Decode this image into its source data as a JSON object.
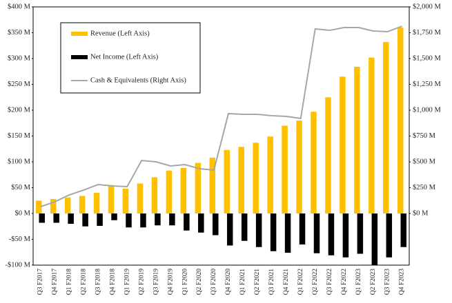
{
  "chart_data": {
    "type": "bar",
    "categories": [
      "Q3 F2017",
      "Q4 F2017",
      "Q1 F2018",
      "Q2 F2018",
      "Q3 F2018",
      "Q4 F2018",
      "Q1 F2019",
      "Q2 F2019",
      "Q3 F2019",
      "Q4 F2019",
      "Q1 F2020",
      "Q2 F2020",
      "Q3 F2020",
      "Q4 F2020",
      "Q1 F2021",
      "Q2 F2021",
      "Q3 F2021",
      "Q4 F2021",
      "Q1 F2022",
      "Q2 F2022",
      "Q3 F2022",
      "Q4 F2022",
      "Q1 F2023",
      "Q2 F2023",
      "Q3 F2023",
      "Q4 F2023"
    ],
    "series": [
      {
        "name": "Revenue (Left Axis)",
        "type": "bar",
        "color": "#ffc000",
        "values": [
          25,
          28,
          31,
          34,
          40,
          55,
          48,
          58,
          70,
          83,
          88,
          98,
          108,
          123,
          129,
          137,
          149,
          170,
          180,
          197,
          225,
          265,
          284,
          302,
          332,
          360
        ]
      },
      {
        "name": "Net Income (Left Axis)",
        "type": "bar",
        "color": "#000000",
        "values": [
          -18,
          -18,
          -20,
          -25,
          -24,
          -13,
          -27,
          -27,
          -23,
          -23,
          -33,
          -37,
          -42,
          -62,
          -53,
          -65,
          -73,
          -76,
          -60,
          -77,
          -81,
          -85,
          -78,
          -100,
          -85,
          -65
        ]
      },
      {
        "name": "Cash & Equivalents (Right Axis)",
        "type": "line",
        "color": "#a6a6a6",
        "axis": "y2",
        "values": [
          65,
          113,
          180,
          227,
          280,
          267,
          260,
          513,
          500,
          460,
          473,
          433,
          420,
          967,
          960,
          960,
          947,
          940,
          920,
          1787,
          1773,
          1800,
          1800,
          1767,
          1760,
          1813
        ]
      }
    ],
    "ylim": [
      -100,
      400
    ],
    "yticks": [
      {
        "value": -100,
        "label": "-$100 M"
      },
      {
        "value": -50,
        "label": "-$50 M"
      },
      {
        "value": 0,
        "label": "$0 M"
      },
      {
        "value": 50,
        "label": "$50 M"
      },
      {
        "value": 100,
        "label": "$100 M"
      },
      {
        "value": 150,
        "label": "$150 M"
      },
      {
        "value": 200,
        "label": "$200 M"
      },
      {
        "value": 250,
        "label": "$250 M"
      },
      {
        "value": 300,
        "label": "$300 M"
      },
      {
        "value": 350,
        "label": "$350 M"
      },
      {
        "value": 400,
        "label": "$400 M"
      }
    ],
    "y2lim": [
      -500,
      2000
    ],
    "y2ticks": [
      {
        "value": 0,
        "label": "$0 M"
      },
      {
        "value": 250,
        "label": "$250 M"
      },
      {
        "value": 500,
        "label": "$500 M"
      },
      {
        "value": 750,
        "label": "$750 M"
      },
      {
        "value": 1000,
        "label": "$1,000 M"
      },
      {
        "value": 1250,
        "label": "$1,250 M"
      },
      {
        "value": 1500,
        "label": "$1,500 M"
      },
      {
        "value": 1750,
        "label": "$1,750 M"
      },
      {
        "value": 2000,
        "label": "$2,000 M"
      }
    ],
    "grid": false,
    "legend": "upper left"
  }
}
